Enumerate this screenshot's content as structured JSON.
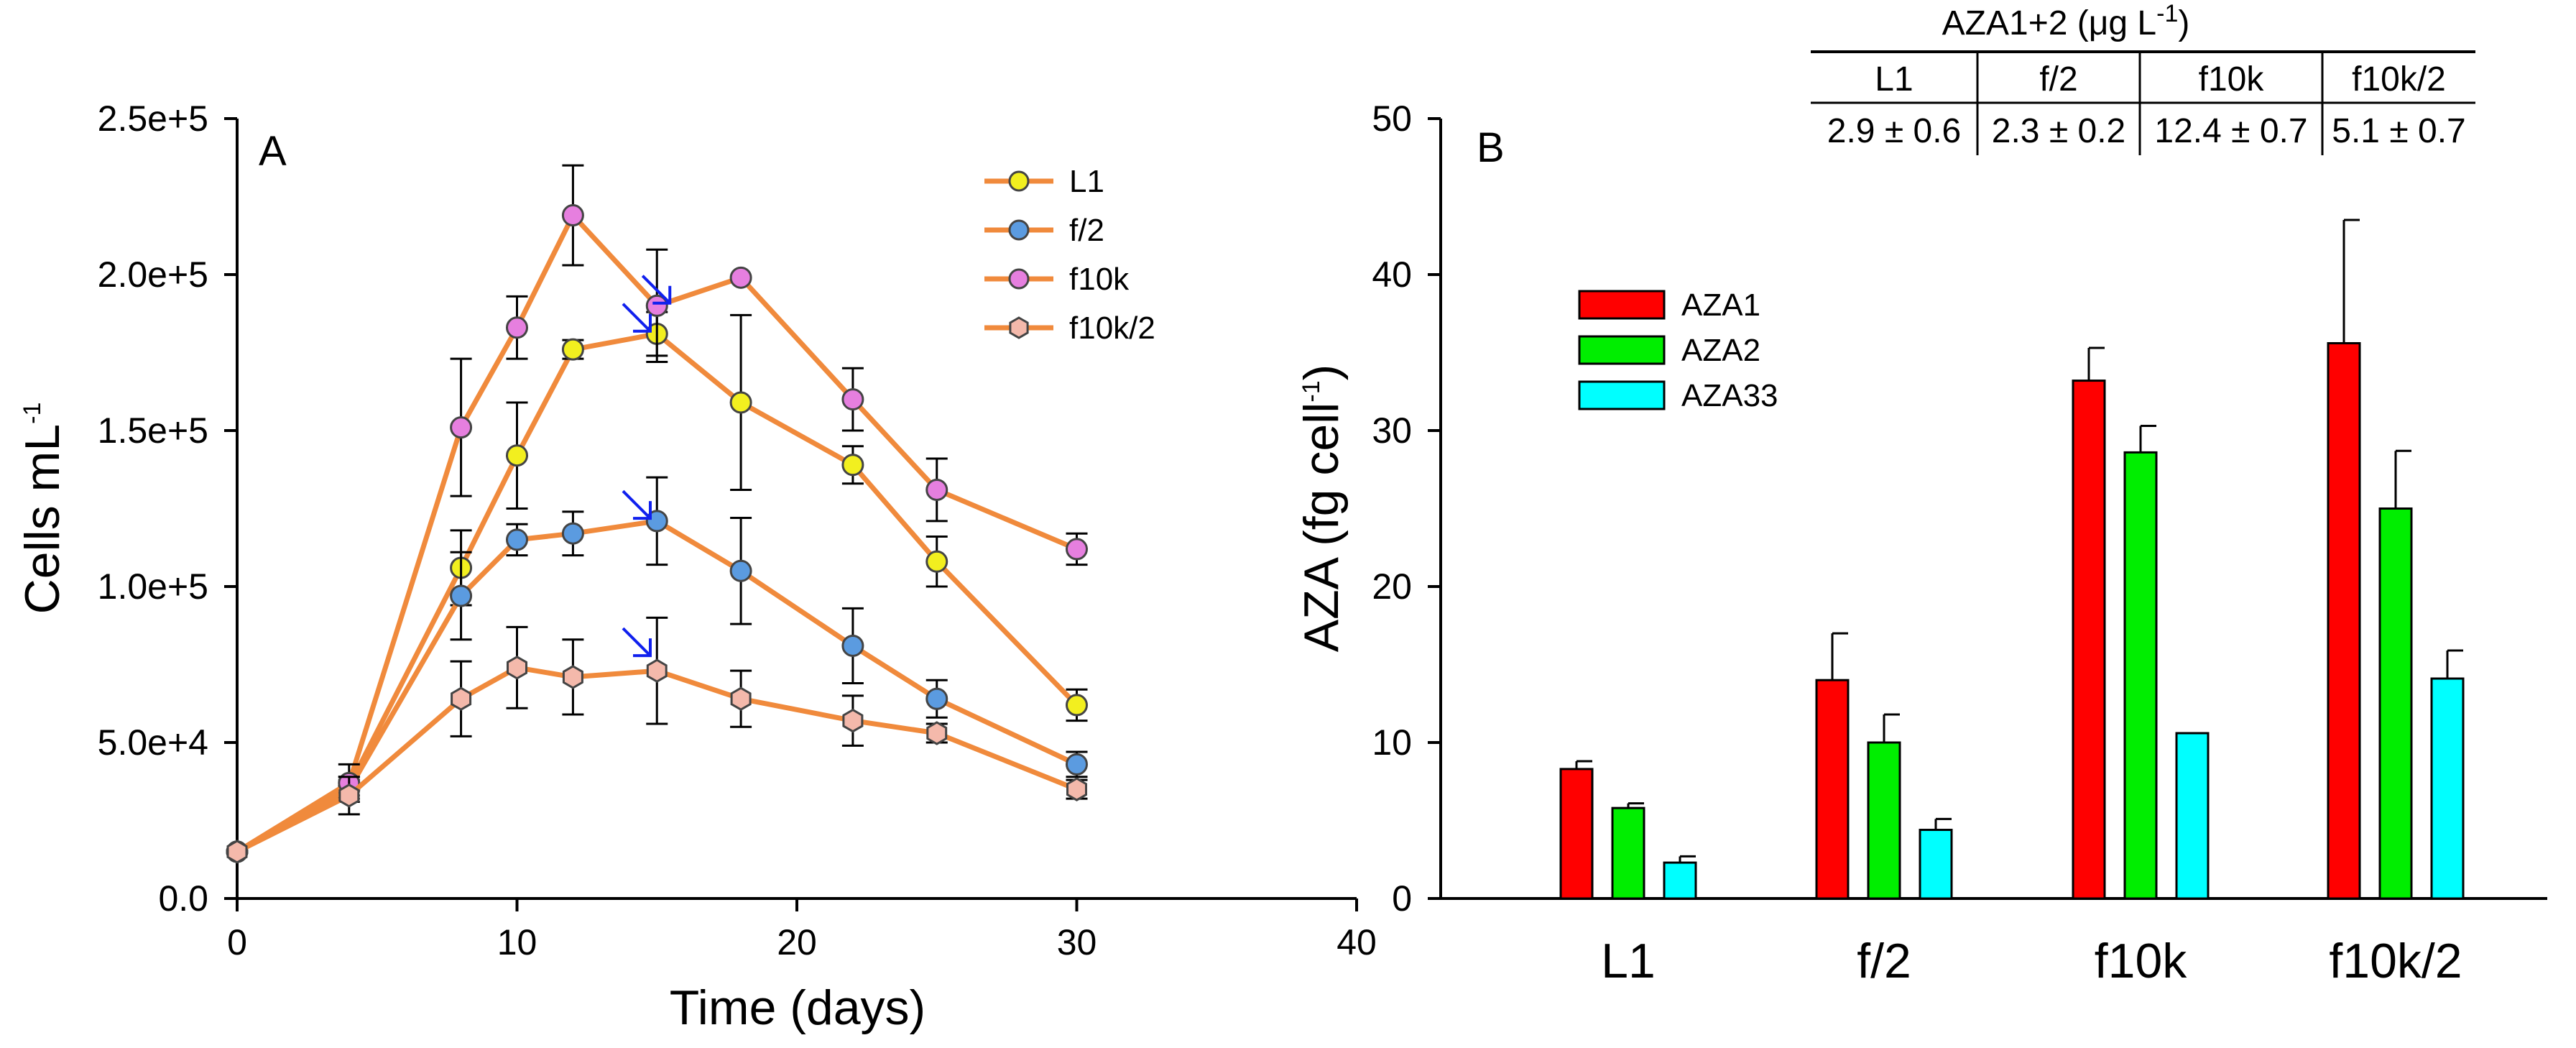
{
  "chart_data": [
    {
      "type": "line",
      "panel_label": "A",
      "xlabel": "Time (days)",
      "ylabel": "Cells mL",
      "ylabel_sup": "-1",
      "xlim": [
        0,
        40
      ],
      "ylim": [
        0,
        250000
      ],
      "xticks": [
        0,
        10,
        20,
        30,
        40
      ],
      "yticks": [
        0,
        50000,
        100000,
        150000,
        200000,
        250000
      ],
      "ytick_labels": [
        "0.0",
        "5.0e+4",
        "1.0e+5",
        "1.5e+5",
        "2.0e+5",
        "2.5e+5"
      ],
      "line_color": "#f08a3c",
      "series": [
        {
          "name": "L1",
          "marker": "circle",
          "color": "#f2ef1f",
          "x": [
            0,
            4,
            8,
            10,
            12,
            15,
            18,
            22,
            25,
            30
          ],
          "y": [
            15000,
            36000,
            106000,
            142000,
            176000,
            181000,
            159000,
            139000,
            108000,
            62000
          ],
          "err": [
            0,
            3000,
            12000,
            17000,
            3000,
            7000,
            28000,
            6000,
            8000,
            5000
          ]
        },
        {
          "name": "f/2",
          "marker": "circle",
          "color": "#5b9be0",
          "x": [
            0,
            4,
            8,
            10,
            12,
            15,
            18,
            22,
            25,
            30
          ],
          "y": [
            15000,
            35000,
            97000,
            115000,
            117000,
            121000,
            105000,
            81000,
            64000,
            43000
          ],
          "err": [
            0,
            3000,
            14000,
            5000,
            7000,
            14000,
            17000,
            12000,
            6000,
            4000
          ]
        },
        {
          "name": "f10k",
          "marker": "circle",
          "color": "#e67fdf",
          "x": [
            0,
            4,
            8,
            10,
            12,
            15,
            18,
            22,
            25,
            30
          ],
          "y": [
            15000,
            37000,
            151000,
            183000,
            219000,
            190000,
            199000,
            160000,
            131000,
            112000
          ],
          "err": [
            0,
            6000,
            22000,
            10000,
            16000,
            18000,
            0,
            10000,
            10000,
            5000
          ]
        },
        {
          "name": "f10k/2",
          "marker": "hexagon",
          "color": "#f4b9ab",
          "x": [
            0,
            4,
            8,
            10,
            12,
            15,
            18,
            22,
            25,
            30
          ],
          "y": [
            15000,
            33000,
            64000,
            74000,
            71000,
            73000,
            64000,
            57000,
            53000,
            35000
          ],
          "err": [
            0,
            6000,
            12000,
            13000,
            12000,
            17000,
            9000,
            8000,
            3000,
            3000
          ]
        }
      ],
      "annotations": [
        {
          "type": "arrow",
          "label": "blue-arrow",
          "color": "#1020ee",
          "x": 15,
          "y": 195000
        },
        {
          "type": "arrow",
          "label": "blue-arrow",
          "color": "#1020ee",
          "x": 14.3,
          "y": 186000
        },
        {
          "type": "arrow",
          "label": "blue-arrow",
          "color": "#1020ee",
          "x": 14.3,
          "y": 126000
        },
        {
          "type": "arrow",
          "label": "blue-arrow",
          "color": "#1020ee",
          "x": 14.3,
          "y": 82000
        }
      ],
      "legend": "top-right"
    },
    {
      "type": "bar",
      "panel_label": "B",
      "ylabel": "AZA (fg cell",
      "ylabel_sup": "-1",
      "ylabel_close": ")",
      "categories": [
        "L1",
        "f/2",
        "f10k",
        "f10k/2"
      ],
      "ylim": [
        0,
        50
      ],
      "yticks": [
        0,
        10,
        20,
        30,
        40,
        50
      ],
      "series": [
        {
          "name": "AZA1",
          "color": "#ff0000",
          "values": [
            8.3,
            14.0,
            33.2,
            35.6
          ],
          "err": [
            0.5,
            3.0,
            2.1,
            7.9
          ]
        },
        {
          "name": "AZA2",
          "color": "#00ee00",
          "values": [
            5.8,
            10.0,
            28.6,
            25.0
          ],
          "err": [
            0.3,
            1.8,
            1.7,
            3.7
          ]
        },
        {
          "name": "AZA33",
          "color": "#00ffff",
          "values": [
            2.3,
            4.4,
            10.6,
            14.1
          ],
          "err": [
            0.4,
            0.7,
            0,
            1.8
          ]
        }
      ],
      "legend": "top-left",
      "table": {
        "title": "AZA1+2 (μg L",
        "title_sup": "-1",
        "title_close": ")",
        "headers": [
          "L1",
          "f/2",
          "f10k",
          "f10k/2"
        ],
        "values": [
          "2.9 ± 0.6",
          "2.3 ± 0.2",
          "12.4 ± 0.7",
          "5.1 ± 0.7"
        ]
      }
    }
  ]
}
